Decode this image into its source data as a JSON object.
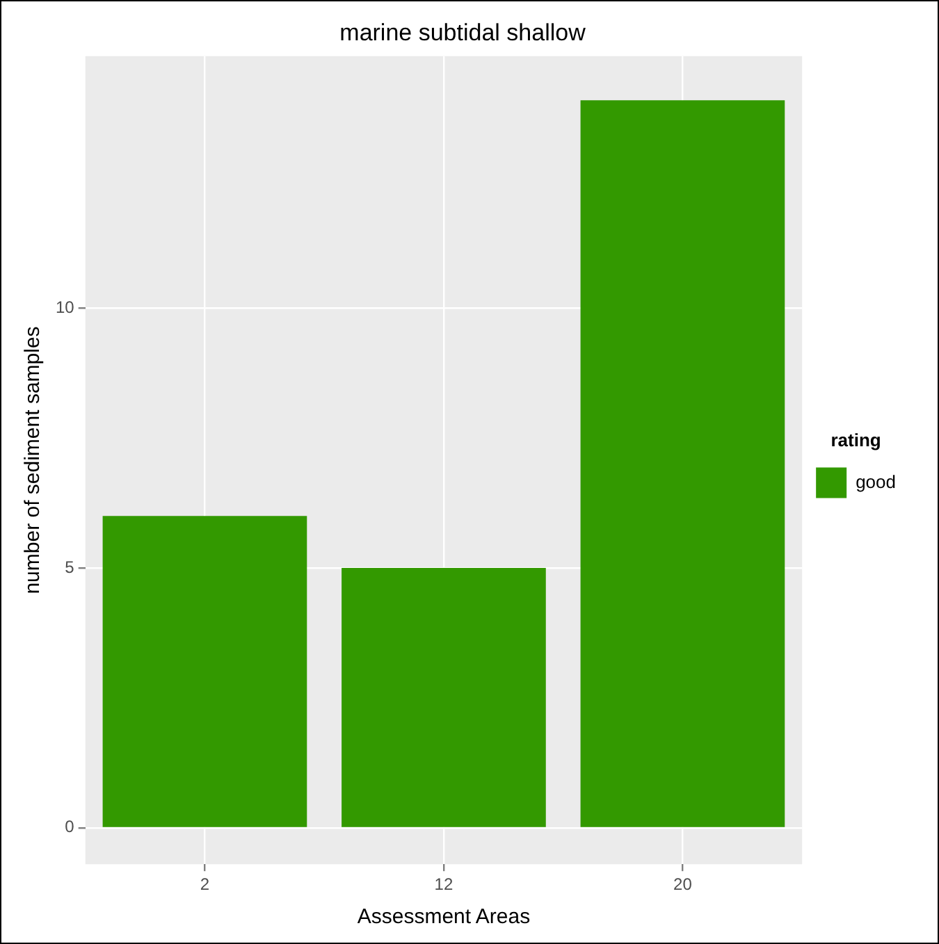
{
  "chart_data": {
    "type": "bar",
    "title": "marine subtidal shallow",
    "xlabel": "Assessment Areas",
    "ylabel": "number of sediment samples",
    "legend_title": "rating",
    "categories": [
      "2",
      "12",
      "20"
    ],
    "series": [
      {
        "name": "good",
        "color": "#339900",
        "values": [
          6,
          5,
          14
        ]
      }
    ],
    "ylim": [
      -0.7,
      14.85
    ],
    "yticks": [
      0,
      5,
      10
    ],
    "grid": true,
    "legend": "right"
  }
}
